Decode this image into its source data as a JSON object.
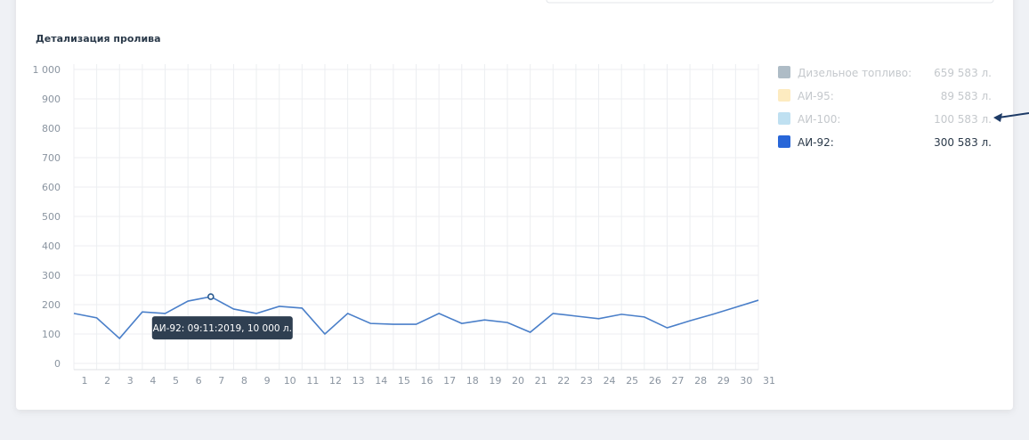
{
  "chart_data": {
    "type": "line",
    "title": "Детализация пролива",
    "categories": [
      "1",
      "2",
      "3",
      "4",
      "5",
      "6",
      "7",
      "8",
      "9",
      "10",
      "11",
      "12",
      "13",
      "14",
      "15",
      "16",
      "17",
      "18",
      "19",
      "20",
      "21",
      "22",
      "23",
      "24",
      "25",
      "26",
      "27",
      "28",
      "29",
      "30",
      "31"
    ],
    "series": [
      {
        "name": "АИ-92:",
        "color": "#4a7fc9",
        "values": [
          170,
          155,
          85,
          175,
          170,
          212,
          227,
          185,
          170,
          194,
          188,
          100,
          170,
          136,
          133,
          133,
          170,
          136,
          148,
          139,
          106,
          170,
          161,
          152,
          167,
          158,
          121,
          145,
          167,
          191,
          215
        ]
      }
    ],
    "ylim": [
      0,
      1000
    ],
    "yticks": [
      0,
      100,
      200,
      300,
      400,
      500,
      600,
      700,
      800,
      900,
      {
        "value": 1000,
        "label": "1 000"
      }
    ],
    "grid": true,
    "legend": [
      {
        "name": "Дизельное топливо:",
        "color": "#aebcc6",
        "total": "659 583 л.",
        "active": false
      },
      {
        "name": "АИ-95:",
        "color": "#fdebc0",
        "total": "89 583 л.",
        "active": false
      },
      {
        "name": "АИ-100:",
        "color": "#bfe0f1",
        "total": "100 583 л.",
        "active": false
      },
      {
        "name": "АИ-92:",
        "color": "#2866d8",
        "total": "300 583 л.",
        "active": true
      }
    ],
    "tooltip": "АИ-92: 09:11:2019, 10 000 л."
  }
}
